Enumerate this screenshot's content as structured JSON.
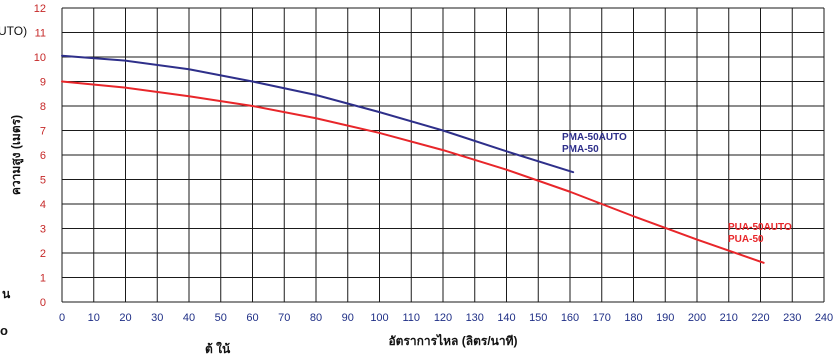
{
  "chart_data": {
    "type": "line",
    "xlabel": "อัตราการไหล (ลิตร/นาที)",
    "ylabel": "ความสูง (เมตร)",
    "xlim": [
      0,
      240
    ],
    "ylim": [
      0,
      12
    ],
    "xticks": [
      0,
      10,
      20,
      30,
      40,
      50,
      60,
      70,
      80,
      90,
      100,
      110,
      120,
      130,
      140,
      150,
      160,
      170,
      180,
      190,
      200,
      210,
      220,
      230,
      240
    ],
    "yticks": [
      0,
      1,
      2,
      3,
      4,
      5,
      6,
      7,
      8,
      9,
      10,
      11,
      12
    ],
    "grid": true,
    "series": [
      {
        "label_lines": [
          "PMA-50AUTO",
          "PMA-50"
        ],
        "color": "#2e2f8a",
        "x": [
          0,
          20,
          40,
          60,
          80,
          100,
          120,
          140,
          161
        ],
        "y": [
          10.05,
          9.85,
          9.5,
          9.0,
          8.45,
          7.75,
          7.0,
          6.15,
          5.3
        ]
      },
      {
        "label_lines": [
          "PUA-50AUTO",
          "PUA-50"
        ],
        "color": "#e8262a",
        "x": [
          0,
          20,
          40,
          60,
          80,
          100,
          120,
          140,
          160,
          180,
          200,
          221
        ],
        "y": [
          9.0,
          8.75,
          8.4,
          8.0,
          7.5,
          6.9,
          6.2,
          5.4,
          4.5,
          3.5,
          2.55,
          1.6
        ]
      }
    ]
  },
  "edge_fragments": {
    "auto": "UTO)",
    "left_a": "น",
    "left_b": "o",
    "bottom": "ต้ ใน้"
  },
  "colors": {
    "tick_y": "#c62828",
    "tick_x": "#1f2f86",
    "grid": "#1a1a1a",
    "axis_title": "#111111"
  }
}
